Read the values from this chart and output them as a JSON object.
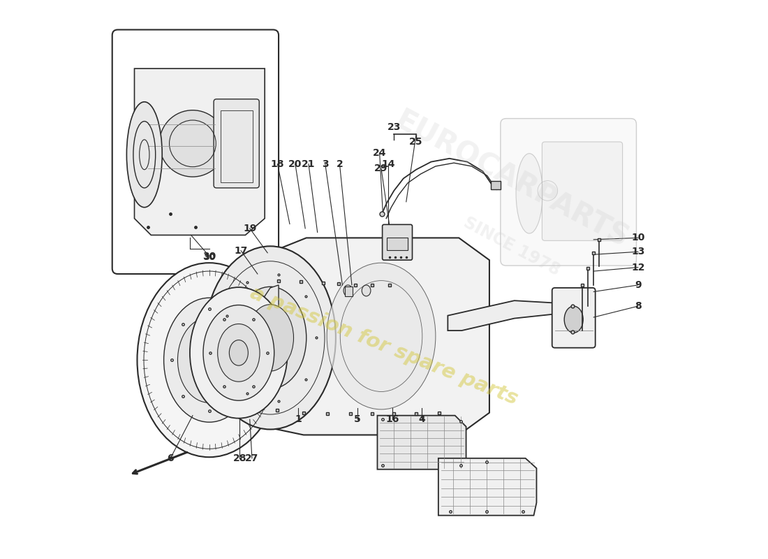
{
  "bg_color": "#ffffff",
  "line_color": "#2a2a2a",
  "light_line": "#888888",
  "watermark_text": "a passion for spare parts",
  "watermark_color": "#d4c840",
  "watermark_alpha": 0.5,
  "brand_watermark": "EUROCARPARTS",
  "brand_color": "#cccccc",
  "brand_alpha": 0.25
}
